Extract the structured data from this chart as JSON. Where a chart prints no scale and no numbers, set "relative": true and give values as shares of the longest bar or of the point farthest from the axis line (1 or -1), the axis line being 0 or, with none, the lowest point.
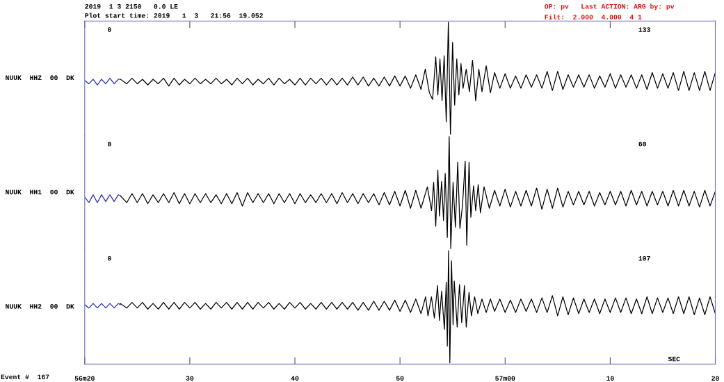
{
  "chart_data": [
    {
      "type": "line",
      "title": "2019  1 3 2150   0.0 LE",
      "subtitle": "Plot start time: 2019   1  3   21:56  19.052",
      "ylabel": "NUUK  HHZ  00  DK",
      "relative": true,
      "xlim": [
        "2019-01-03T21:56:20",
        "2019-01-03T21:57:20"
      ],
      "xticks": [
        {
          "value": "2019-01-03T21:56:20",
          "label": null
        },
        {
          "value": "2019-01-03T21:56:30",
          "label": null
        },
        {
          "value": "2019-01-03T21:56:40",
          "label": null
        },
        {
          "value": "2019-01-03T21:56:50",
          "label": null
        },
        {
          "value": "2019-01-03T21:57:00",
          "label": null
        },
        {
          "value": "2019-01-03T21:57:10",
          "label": null
        },
        {
          "value": "2019-01-03T21:57:20",
          "label": null
        }
      ],
      "tick_labels": false,
      "grid": false,
      "legend": false,
      "annotations": [
        "0",
        "133",
        "OP: pv   Last ACTION: ARG by: pv",
        "Filt:  2.000  4.000  4 1"
      ],
      "series": [
        {
          "color": "#2a2ab8",
          "x": [
            "2019-01-03T21:56:20",
            "2019-01-03T21:56:20.4",
            "2019-01-03T21:56:20.8",
            "2019-01-03T21:56:21.2",
            "2019-01-03T21:56:21.6",
            "2019-01-03T21:56:22",
            "2019-01-03T21:56:22.4",
            "2019-01-03T21:56:22.8",
            "2019-01-03T21:56:23.2",
            "2019-01-03T21:56:23.4"
          ],
          "values": [
            0.48,
            0.45,
            0.49,
            0.44,
            0.49,
            0.45,
            0.5,
            0.45,
            0.49,
            0.49
          ]
        },
        {
          "color": "#000000",
          "x": [
            "2019-01-03T21:56:23.4",
            "2019-01-03T21:56:24",
            "2019-01-03T21:56:24.5",
            "2019-01-03T21:56:25",
            "2019-01-03T21:56:25.5",
            "2019-01-03T21:56:26",
            "2019-01-03T21:56:26.5",
            "2019-01-03T21:56:27",
            "2019-01-03T21:56:27.5",
            "2019-01-03T21:56:28",
            "2019-01-03T21:56:28.5",
            "2019-01-03T21:56:29",
            "2019-01-03T21:56:29.5",
            "2019-01-03T21:56:30",
            "2019-01-03T21:56:30.5",
            "2019-01-03T21:56:31",
            "2019-01-03T21:56:31.5",
            "2019-01-03T21:56:32",
            "2019-01-03T21:56:32.5",
            "2019-01-03T21:56:33",
            "2019-01-03T21:56:33.5",
            "2019-01-03T21:56:34",
            "2019-01-03T21:56:34.5",
            "2019-01-03T21:56:35",
            "2019-01-03T21:56:35.5",
            "2019-01-03T21:56:36",
            "2019-01-03T21:56:36.5",
            "2019-01-03T21:56:37",
            "2019-01-03T21:56:37.5",
            "2019-01-03T21:56:38",
            "2019-01-03T21:56:38.5",
            "2019-01-03T21:56:39",
            "2019-01-03T21:56:39.5",
            "2019-01-03T21:56:40",
            "2019-01-03T21:56:40.5",
            "2019-01-03T21:56:41",
            "2019-01-03T21:56:41.5",
            "2019-01-03T21:56:42",
            "2019-01-03T21:56:42.5",
            "2019-01-03T21:56:43",
            "2019-01-03T21:56:43.5",
            "2019-01-03T21:56:44",
            "2019-01-03T21:56:44.5",
            "2019-01-03T21:56:45",
            "2019-01-03T21:56:45.5",
            "2019-01-03T21:56:46",
            "2019-01-03T21:56:46.5",
            "2019-01-03T21:56:47",
            "2019-01-03T21:56:47.5",
            "2019-01-03T21:56:48",
            "2019-01-03T21:56:48.5",
            "2019-01-03T21:56:49",
            "2019-01-03T21:56:49.5",
            "2019-01-03T21:56:50",
            "2019-01-03T21:56:50.5",
            "2019-01-03T21:56:51",
            "2019-01-03T21:56:51.5",
            "2019-01-03T21:56:52",
            "2019-01-03T21:56:52.4",
            "2019-01-03T21:56:52.8",
            "2019-01-03T21:56:53.1",
            "2019-01-03T21:56:53.4",
            "2019-01-03T21:56:53.6",
            "2019-01-03T21:56:53.8",
            "2019-01-03T21:56:54",
            "2019-01-03T21:56:54.2",
            "2019-01-03T21:56:54.4",
            "2019-01-03T21:56:54.6",
            "2019-01-03T21:56:54.8",
            "2019-01-03T21:56:55",
            "2019-01-03T21:56:55.2",
            "2019-01-03T21:56:55.4",
            "2019-01-03T21:56:55.6",
            "2019-01-03T21:56:55.8",
            "2019-01-03T21:56:56",
            "2019-01-03T21:56:56.3",
            "2019-01-03T21:56:56.6",
            "2019-01-03T21:56:56.9",
            "2019-01-03T21:56:57.2",
            "2019-01-03T21:56:57.5",
            "2019-01-03T21:56:57.8",
            "2019-01-03T21:56:58.2",
            "2019-01-03T21:56:58.6",
            "2019-01-03T21:56:59",
            "2019-01-03T21:56:59.5",
            "2019-01-03T21:57:00",
            "2019-01-03T21:57:00.5",
            "2019-01-03T21:57:01",
            "2019-01-03T21:57:01.5",
            "2019-01-03T21:57:02",
            "2019-01-03T21:57:02.5",
            "2019-01-03T21:57:03",
            "2019-01-03T21:57:03.5",
            "2019-01-03T21:57:04",
            "2019-01-03T21:57:04.5",
            "2019-01-03T21:57:05",
            "2019-01-03T21:57:05.5",
            "2019-01-03T21:57:06",
            "2019-01-03T21:57:06.5",
            "2019-01-03T21:57:07",
            "2019-01-03T21:57:07.5",
            "2019-01-03T21:57:08",
            "2019-01-03T21:57:08.5",
            "2019-01-03T21:57:09",
            "2019-01-03T21:57:09.5",
            "2019-01-03T21:57:10",
            "2019-01-03T21:57:10.5",
            "2019-01-03T21:57:11",
            "2019-01-03T21:57:11.5",
            "2019-01-03T21:57:12",
            "2019-01-03T21:57:12.5",
            "2019-01-03T21:57:13",
            "2019-01-03T21:57:13.5",
            "2019-01-03T21:57:14",
            "2019-01-03T21:57:14.5",
            "2019-01-03T21:57:15",
            "2019-01-03T21:57:15.5",
            "2019-01-03T21:57:16",
            "2019-01-03T21:57:16.5",
            "2019-01-03T21:57:17",
            "2019-01-03T21:57:17.5",
            "2019-01-03T21:57:18",
            "2019-01-03T21:57:18.5",
            "2019-01-03T21:57:19",
            "2019-01-03T21:57:19.5",
            "2019-01-03T21:57:20"
          ],
          "values": [
            0.49,
            0.45,
            0.5,
            0.45,
            0.49,
            0.44,
            0.49,
            0.45,
            0.5,
            0.43,
            0.5,
            0.44,
            0.49,
            0.45,
            0.5,
            0.45,
            0.49,
            0.45,
            0.5,
            0.45,
            0.49,
            0.44,
            0.5,
            0.45,
            0.5,
            0.44,
            0.49,
            0.45,
            0.5,
            0.44,
            0.5,
            0.45,
            0.49,
            0.44,
            0.5,
            0.44,
            0.5,
            0.45,
            0.5,
            0.44,
            0.5,
            0.44,
            0.5,
            0.44,
            0.51,
            0.44,
            0.51,
            0.43,
            0.5,
            0.43,
            0.51,
            0.43,
            0.52,
            0.43,
            0.52,
            0.41,
            0.53,
            0.4,
            0.58,
            0.37,
            0.31,
            0.69,
            0.35,
            0.67,
            0.3,
            0.7,
            0.11,
            1.0,
            0.0,
            0.82,
            0.26,
            0.67,
            0.35,
            0.63,
            0.41,
            0.58,
            0.38,
            0.66,
            0.3,
            0.58,
            0.38,
            0.61,
            0.37,
            0.55,
            0.41,
            0.54,
            0.41,
            0.52,
            0.41,
            0.53,
            0.42,
            0.53,
            0.41,
            0.56,
            0.39,
            0.56,
            0.4,
            0.53,
            0.42,
            0.53,
            0.42,
            0.53,
            0.41,
            0.52,
            0.42,
            0.54,
            0.41,
            0.53,
            0.42,
            0.53,
            0.41,
            0.53,
            0.4,
            0.55,
            0.41,
            0.54,
            0.41,
            0.55,
            0.39,
            0.56,
            0.39,
            0.55,
            0.39,
            0.56,
            0.39,
            0.55
          ]
        }
      ]
    },
    {
      "type": "line",
      "ylabel": "NUUK  HH1  00  DK",
      "relative": true,
      "xlim": [
        "2019-01-03T21:56:20",
        "2019-01-03T21:57:20"
      ],
      "xticks": [
        {
          "value": "2019-01-03T21:56:20",
          "label": null
        },
        {
          "value": "2019-01-03T21:56:30",
          "label": null
        },
        {
          "value": "2019-01-03T21:56:40",
          "label": null
        },
        {
          "value": "2019-01-03T21:56:50",
          "label": null
        },
        {
          "value": "2019-01-03T21:57:00",
          "label": null
        },
        {
          "value": "2019-01-03T21:57:10",
          "label": null
        },
        {
          "value": "2019-01-03T21:57:20",
          "label": null
        }
      ],
      "tick_labels": false,
      "grid": false,
      "legend": false,
      "annotations": [
        "0",
        "60"
      ],
      "series": [
        {
          "color": "#2a2ab8",
          "x": [
            "2019-01-03T21:56:20",
            "2019-01-03T21:56:20.4",
            "2019-01-03T21:56:20.8",
            "2019-01-03T21:56:21.2",
            "2019-01-03T21:56:21.6",
            "2019-01-03T21:56:22",
            "2019-01-03T21:56:22.4",
            "2019-01-03T21:56:22.8",
            "2019-01-03T21:56:23.2",
            "2019-01-03T21:56:23.4"
          ],
          "values": [
            0.46,
            0.41,
            0.48,
            0.41,
            0.48,
            0.42,
            0.48,
            0.42,
            0.48,
            0.47
          ]
        },
        {
          "color": "#000000",
          "x": [
            "2019-01-03T21:56:23.4",
            "2019-01-03T21:56:24",
            "2019-01-03T21:56:24.5",
            "2019-01-03T21:56:25",
            "2019-01-03T21:56:25.5",
            "2019-01-03T21:56:26",
            "2019-01-03T21:56:26.5",
            "2019-01-03T21:56:27",
            "2019-01-03T21:56:27.5",
            "2019-01-03T21:56:28",
            "2019-01-03T21:56:28.5",
            "2019-01-03T21:56:29",
            "2019-01-03T21:56:29.5",
            "2019-01-03T21:56:30",
            "2019-01-03T21:56:30.5",
            "2019-01-03T21:56:31",
            "2019-01-03T21:56:31.5",
            "2019-01-03T21:56:32",
            "2019-01-03T21:56:32.5",
            "2019-01-03T21:56:33",
            "2019-01-03T21:56:33.5",
            "2019-01-03T21:56:34",
            "2019-01-03T21:56:34.5",
            "2019-01-03T21:56:35",
            "2019-01-03T21:56:35.5",
            "2019-01-03T21:56:36",
            "2019-01-03T21:56:36.5",
            "2019-01-03T21:56:37",
            "2019-01-03T21:56:37.5",
            "2019-01-03T21:56:38",
            "2019-01-03T21:56:38.5",
            "2019-01-03T21:56:39",
            "2019-01-03T21:56:39.5",
            "2019-01-03T21:56:40",
            "2019-01-03T21:56:40.5",
            "2019-01-03T21:56:41",
            "2019-01-03T21:56:41.5",
            "2019-01-03T21:56:42",
            "2019-01-03T21:56:42.5",
            "2019-01-03T21:56:43",
            "2019-01-03T21:56:43.5",
            "2019-01-03T21:56:44",
            "2019-01-03T21:56:44.5",
            "2019-01-03T21:56:45",
            "2019-01-03T21:56:45.5",
            "2019-01-03T21:56:46",
            "2019-01-03T21:56:46.5",
            "2019-01-03T21:56:47",
            "2019-01-03T21:56:47.5",
            "2019-01-03T21:56:48",
            "2019-01-03T21:56:48.5",
            "2019-01-03T21:56:49",
            "2019-01-03T21:56:49.5",
            "2019-01-03T21:56:50",
            "2019-01-03T21:56:50.5",
            "2019-01-03T21:56:51",
            "2019-01-03T21:56:51.5",
            "2019-01-03T21:56:52",
            "2019-01-03T21:56:52.6",
            "2019-01-03T21:56:53",
            "2019-01-03T21:56:53.2",
            "2019-01-03T21:56:53.4",
            "2019-01-03T21:56:53.6",
            "2019-01-03T21:56:53.75",
            "2019-01-03T21:56:53.96",
            "2019-01-03T21:56:54.14",
            "2019-01-03T21:56:54.3",
            "2019-01-03T21:56:54.5",
            "2019-01-03T21:56:54.68",
            "2019-01-03T21:56:54.83",
            "2019-01-03T21:56:55.05",
            "2019-01-03T21:56:55.27",
            "2019-01-03T21:56:55.49",
            "2019-01-03T21:56:55.7",
            "2019-01-03T21:56:55.95",
            "2019-01-03T21:56:56.2",
            "2019-01-03T21:56:56.35",
            "2019-01-03T21:56:56.57",
            "2019-01-03T21:56:56.74",
            "2019-01-03T21:56:57",
            "2019-01-03T21:56:57.2",
            "2019-01-03T21:56:57.44",
            "2019-01-03T21:56:57.65",
            "2019-01-03T21:56:58",
            "2019-01-03T21:56:58.5",
            "2019-01-03T21:56:59",
            "2019-01-03T21:56:59.5",
            "2019-01-03T21:57:00",
            "2019-01-03T21:57:00.5",
            "2019-01-03T21:57:01",
            "2019-01-03T21:57:01.5",
            "2019-01-03T21:57:02",
            "2019-01-03T21:57:02.5",
            "2019-01-03T21:57:03",
            "2019-01-03T21:57:03.5",
            "2019-01-03T21:57:04",
            "2019-01-03T21:57:04.5",
            "2019-01-03T21:57:05",
            "2019-01-03T21:57:05.5",
            "2019-01-03T21:57:06",
            "2019-01-03T21:57:06.5",
            "2019-01-03T21:57:07",
            "2019-01-03T21:57:07.5",
            "2019-01-03T21:57:08",
            "2019-01-03T21:57:08.5",
            "2019-01-03T21:57:09",
            "2019-01-03T21:57:09.5",
            "2019-01-03T21:57:10",
            "2019-01-03T21:57:10.5",
            "2019-01-03T21:57:11",
            "2019-01-03T21:57:11.5",
            "2019-01-03T21:57:12",
            "2019-01-03T21:57:12.5",
            "2019-01-03T21:57:13",
            "2019-01-03T21:57:13.5",
            "2019-01-03T21:57:14",
            "2019-01-03T21:57:14.5",
            "2019-01-03T21:57:15",
            "2019-01-03T21:57:15.5",
            "2019-01-03T21:57:16",
            "2019-01-03T21:57:16.5",
            "2019-01-03T21:57:17",
            "2019-01-03T21:57:17.5",
            "2019-01-03T21:57:18",
            "2019-01-03T21:57:18.5",
            "2019-01-03T21:57:19",
            "2019-01-03T21:57:19.5",
            "2019-01-03T21:57:20"
          ],
          "values": [
            0.47,
            0.41,
            0.49,
            0.41,
            0.49,
            0.4,
            0.48,
            0.41,
            0.49,
            0.41,
            0.5,
            0.4,
            0.49,
            0.4,
            0.49,
            0.41,
            0.49,
            0.41,
            0.48,
            0.4,
            0.49,
            0.4,
            0.5,
            0.38,
            0.5,
            0.41,
            0.49,
            0.41,
            0.49,
            0.4,
            0.49,
            0.41,
            0.49,
            0.4,
            0.49,
            0.41,
            0.48,
            0.41,
            0.49,
            0.41,
            0.49,
            0.4,
            0.5,
            0.41,
            0.49,
            0.4,
            0.49,
            0.41,
            0.49,
            0.39,
            0.5,
            0.39,
            0.51,
            0.38,
            0.52,
            0.36,
            0.52,
            0.36,
            0.55,
            0.34,
            0.59,
            0.2,
            0.7,
            0.29,
            0.6,
            0.25,
            0.67,
            0.1,
            1.0,
            0.0,
            0.59,
            0.19,
            0.77,
            0.18,
            0.39,
            0.78,
            0.03,
            0.77,
            0.28,
            0.56,
            0.34,
            0.57,
            0.32,
            0.55,
            0.36,
            0.52,
            0.38,
            0.53,
            0.37,
            0.51,
            0.38,
            0.52,
            0.38,
            0.54,
            0.35,
            0.53,
            0.36,
            0.54,
            0.37,
            0.51,
            0.39,
            0.51,
            0.39,
            0.51,
            0.38,
            0.5,
            0.39,
            0.51,
            0.39,
            0.51,
            0.38,
            0.52,
            0.39,
            0.51,
            0.38,
            0.51,
            0.39,
            0.51,
            0.38,
            0.52,
            0.38,
            0.52,
            0.38,
            0.51,
            0.37,
            0.52,
            0.38,
            0.51
          ]
        }
      ]
    },
    {
      "type": "line",
      "ylabel": "NUUK  HH2  00  DK",
      "relative": true,
      "xlim": [
        "2019-01-03T21:56:20",
        "2019-01-03T21:57:20"
      ],
      "xticks": [
        {
          "value": "2019-01-03T21:56:20",
          "label": "56m20"
        },
        {
          "value": "2019-01-03T21:56:30",
          "label": "30"
        },
        {
          "value": "2019-01-03T21:56:40",
          "label": "40"
        },
        {
          "value": "2019-01-03T21:56:50",
          "label": "50"
        },
        {
          "value": "2019-01-03T21:57:00",
          "label": "57m00"
        },
        {
          "value": "2019-01-03T21:57:10",
          "label": "10"
        },
        {
          "value": "2019-01-03T21:57:20",
          "label": "20"
        }
      ],
      "tick_labels": "x",
      "grid": false,
      "legend": false,
      "annotations": [
        "0",
        "107",
        "SEC",
        "Event #  167"
      ],
      "series": [
        {
          "color": "#2a2ab8",
          "x": [
            "2019-01-03T21:56:20",
            "2019-01-03T21:56:20.4",
            "2019-01-03T21:56:20.8",
            "2019-01-03T21:56:21.2",
            "2019-01-03T21:56:21.6",
            "2019-01-03T21:56:22",
            "2019-01-03T21:56:22.4",
            "2019-01-03T21:56:22.8",
            "2019-01-03T21:56:23.2",
            "2019-01-03T21:56:23.4"
          ],
          "values": [
            0.52,
            0.49,
            0.53,
            0.49,
            0.53,
            0.49,
            0.53,
            0.49,
            0.53,
            0.52
          ]
        },
        {
          "color": "#000000",
          "x": [
            "2019-01-03T21:56:23.4",
            "2019-01-03T21:56:24",
            "2019-01-03T21:56:24.5",
            "2019-01-03T21:56:25",
            "2019-01-03T21:56:25.5",
            "2019-01-03T21:56:26",
            "2019-01-03T21:56:26.5",
            "2019-01-03T21:56:27",
            "2019-01-03T21:56:27.5",
            "2019-01-03T21:56:28",
            "2019-01-03T21:56:28.5",
            "2019-01-03T21:56:29",
            "2019-01-03T21:56:29.5",
            "2019-01-03T21:56:30",
            "2019-01-03T21:56:30.5",
            "2019-01-03T21:56:31",
            "2019-01-03T21:56:31.5",
            "2019-01-03T21:56:32",
            "2019-01-03T21:56:32.5",
            "2019-01-03T21:56:33",
            "2019-01-03T21:56:33.5",
            "2019-01-03T21:56:34",
            "2019-01-03T21:56:34.5",
            "2019-01-03T21:56:35",
            "2019-01-03T21:56:35.5",
            "2019-01-03T21:56:36",
            "2019-01-03T21:56:36.5",
            "2019-01-03T21:56:37",
            "2019-01-03T21:56:37.5",
            "2019-01-03T21:56:38",
            "2019-01-03T21:56:38.5",
            "2019-01-03T21:56:39",
            "2019-01-03T21:56:39.5",
            "2019-01-03T21:56:40",
            "2019-01-03T21:56:40.5",
            "2019-01-03T21:56:41",
            "2019-01-03T21:56:41.5",
            "2019-01-03T21:56:42",
            "2019-01-03T21:56:42.5",
            "2019-01-03T21:56:43",
            "2019-01-03T21:56:43.5",
            "2019-01-03T21:56:44",
            "2019-01-03T21:56:44.5",
            "2019-01-03T21:56:45",
            "2019-01-03T21:56:45.5",
            "2019-01-03T21:56:46",
            "2019-01-03T21:56:46.5",
            "2019-01-03T21:56:47",
            "2019-01-03T21:56:47.5",
            "2019-01-03T21:56:48",
            "2019-01-03T21:56:48.5",
            "2019-01-03T21:56:49",
            "2019-01-03T21:56:49.5",
            "2019-01-03T21:56:50",
            "2019-01-03T21:56:50.5",
            "2019-01-03T21:56:51",
            "2019-01-03T21:56:51.5",
            "2019-01-03T21:56:52",
            "2019-01-03T21:56:52.44",
            "2019-01-03T21:56:52.66",
            "2019-01-03T21:56:52.99",
            "2019-01-03T21:56:53.27",
            "2019-01-03T21:56:53.57",
            "2019-01-03T21:56:53.75",
            "2019-01-03T21:56:53.96",
            "2019-01-03T21:56:54.22",
            "2019-01-03T21:56:54.4",
            "2019-01-03T21:56:54.5",
            "2019-01-03T21:56:54.62",
            "2019-01-03T21:56:54.74",
            "2019-01-03T21:56:54.9",
            "2019-01-03T21:56:55.05",
            "2019-01-03T21:56:55.16",
            "2019-01-03T21:56:55.44",
            "2019-01-03T21:56:55.66",
            "2019-01-03T21:56:55.87",
            "2019-01-03T21:56:56.13",
            "2019-01-03T21:56:56.3",
            "2019-01-03T21:56:56.57",
            "2019-01-03T21:56:56.79",
            "2019-01-03T21:56:57.1",
            "2019-01-03T21:56:57.4",
            "2019-01-03T21:56:57.8",
            "2019-01-03T21:56:58.2",
            "2019-01-03T21:56:58.6",
            "2019-01-03T21:56:59",
            "2019-01-03T21:56:59.5",
            "2019-01-03T21:57:00",
            "2019-01-03T21:57:00.5",
            "2019-01-03T21:57:01",
            "2019-01-03T21:57:01.5",
            "2019-01-03T21:57:02",
            "2019-01-03T21:57:02.5",
            "2019-01-03T21:57:03",
            "2019-01-03T21:57:03.5",
            "2019-01-03T21:57:04",
            "2019-01-03T21:57:04.5",
            "2019-01-03T21:57:05",
            "2019-01-03T21:57:05.5",
            "2019-01-03T21:57:06",
            "2019-01-03T21:57:06.5",
            "2019-01-03T21:57:07",
            "2019-01-03T21:57:07.5",
            "2019-01-03T21:57:08",
            "2019-01-03T21:57:08.5",
            "2019-01-03T21:57:09",
            "2019-01-03T21:57:09.5",
            "2019-01-03T21:57:10",
            "2019-01-03T21:57:10.5",
            "2019-01-03T21:57:11",
            "2019-01-03T21:57:11.5",
            "2019-01-03T21:57:12",
            "2019-01-03T21:57:12.5",
            "2019-01-03T21:57:13",
            "2019-01-03T21:57:13.5",
            "2019-01-03T21:57:14",
            "2019-01-03T21:57:14.5",
            "2019-01-03T21:57:15",
            "2019-01-03T21:57:15.5",
            "2019-01-03T21:57:16",
            "2019-01-03T21:57:16.5",
            "2019-01-03T21:57:17",
            "2019-01-03T21:57:17.5",
            "2019-01-03T21:57:18",
            "2019-01-03T21:57:18.5",
            "2019-01-03T21:57:19",
            "2019-01-03T21:57:19.5",
            "2019-01-03T21:57:20"
          ],
          "values": [
            0.53,
            0.49,
            0.54,
            0.49,
            0.54,
            0.48,
            0.53,
            0.48,
            0.54,
            0.48,
            0.54,
            0.48,
            0.54,
            0.49,
            0.54,
            0.48,
            0.53,
            0.48,
            0.54,
            0.49,
            0.54,
            0.48,
            0.54,
            0.48,
            0.54,
            0.48,
            0.54,
            0.49,
            0.54,
            0.48,
            0.53,
            0.48,
            0.54,
            0.49,
            0.54,
            0.48,
            0.53,
            0.48,
            0.54,
            0.48,
            0.54,
            0.48,
            0.54,
            0.48,
            0.54,
            0.47,
            0.54,
            0.47,
            0.55,
            0.47,
            0.55,
            0.47,
            0.56,
            0.46,
            0.56,
            0.45,
            0.57,
            0.44,
            0.59,
            0.42,
            0.59,
            0.4,
            0.69,
            0.38,
            0.64,
            0.3,
            0.72,
            0.15,
            1.0,
            0.0,
            0.91,
            0.34,
            0.73,
            0.32,
            0.7,
            0.36,
            0.69,
            0.32,
            0.63,
            0.42,
            0.59,
            0.44,
            0.57,
            0.45,
            0.57,
            0.46,
            0.57,
            0.45,
            0.56,
            0.45,
            0.57,
            0.46,
            0.57,
            0.45,
            0.58,
            0.45,
            0.6,
            0.42,
            0.59,
            0.43,
            0.58,
            0.44,
            0.57,
            0.45,
            0.57,
            0.44,
            0.57,
            0.45,
            0.58,
            0.45,
            0.58,
            0.44,
            0.57,
            0.44,
            0.59,
            0.44,
            0.58,
            0.45,
            0.58,
            0.44,
            0.59,
            0.44,
            0.59,
            0.43,
            0.58,
            0.43,
            0.59,
            0.44
          ]
        }
      ]
    }
  ]
}
